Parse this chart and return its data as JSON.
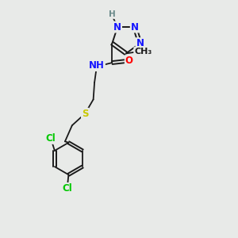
{
  "background_color": "#e8eae8",
  "bond_color": "#1a1a1a",
  "atom_colors": {
    "N": "#1414ff",
    "O": "#ff0000",
    "S": "#c8c800",
    "Cl": "#00c800",
    "C": "#1a1a1a",
    "H": "#6a8a8a"
  },
  "font_size": 8.5,
  "figsize": [
    3.0,
    3.0
  ],
  "dpi": 100,
  "xlim": [
    0,
    10
  ],
  "ylim": [
    0,
    10
  ]
}
